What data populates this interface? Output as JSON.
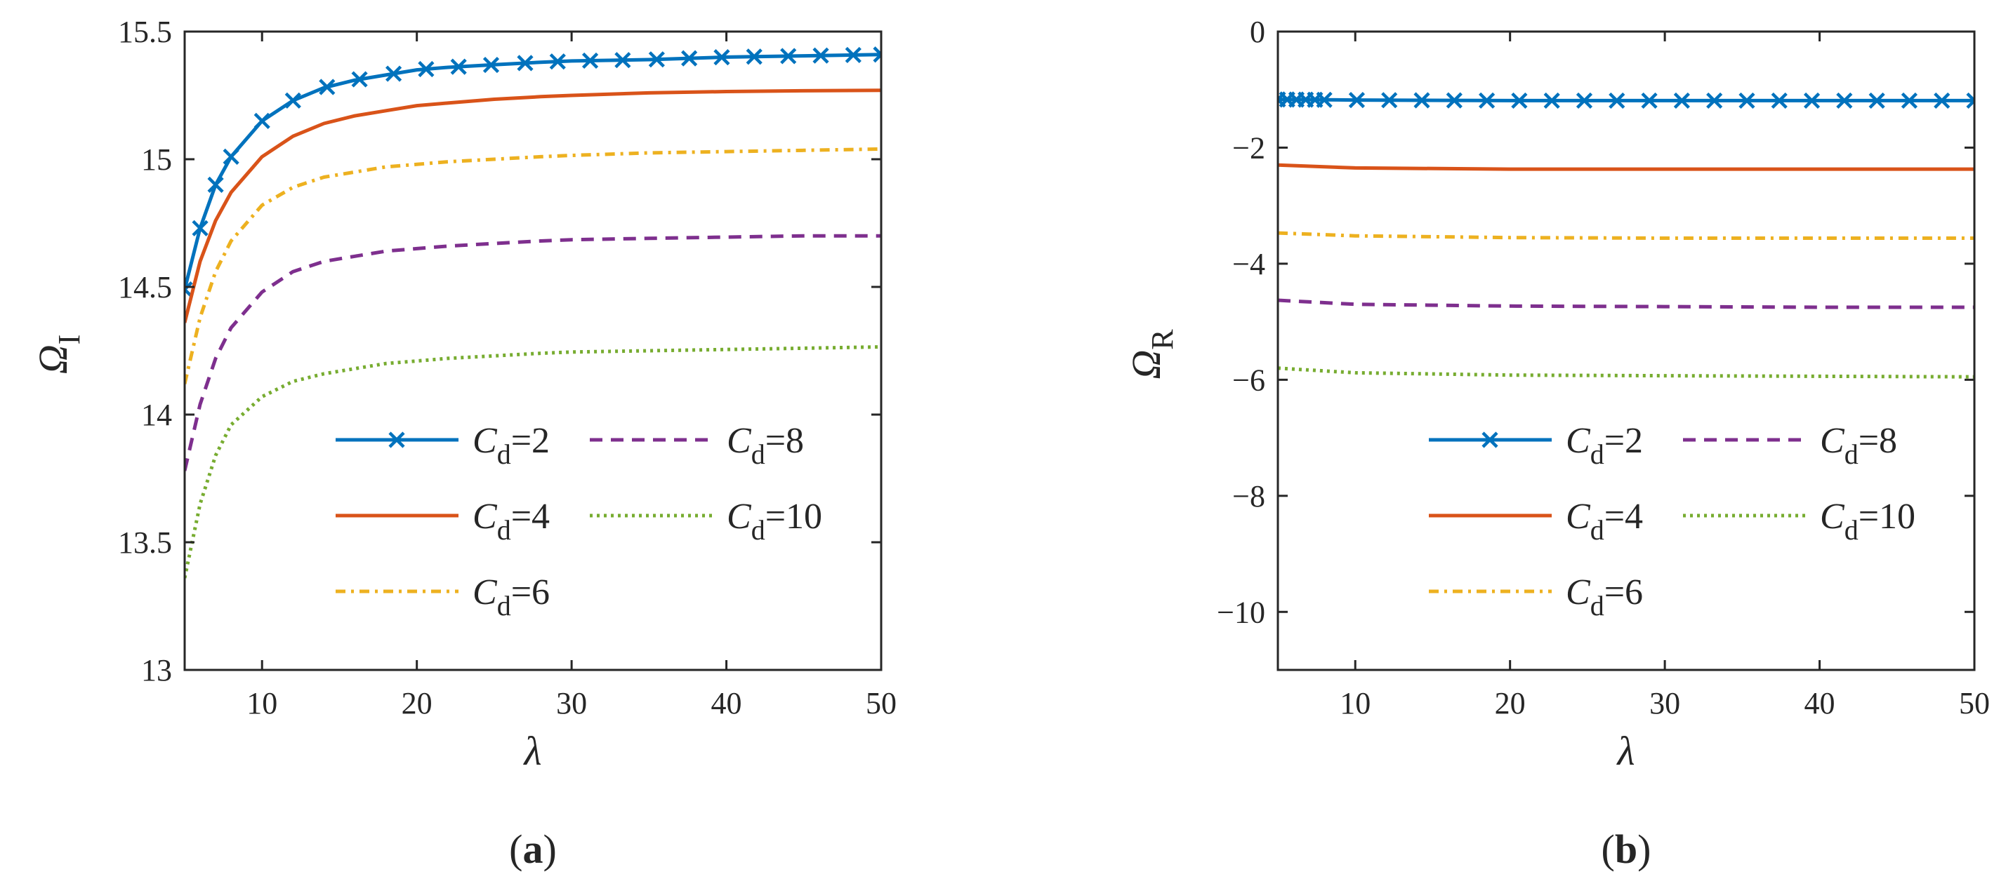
{
  "chart_data": [
    {
      "type": "line",
      "panel_label": "(a)",
      "xlabel": "λ",
      "ylabel": "Ω",
      "ylabel_sub": "I",
      "xlim": [
        5,
        50
      ],
      "ylim": [
        13,
        15.5
      ],
      "xticks": [
        10,
        20,
        30,
        40,
        50
      ],
      "yticks": [
        13,
        13.5,
        14,
        14.5,
        15,
        15.5
      ],
      "xtick_labels": [
        "10",
        "20",
        "30",
        "40",
        "50"
      ],
      "ytick_labels": [
        "13",
        "13.5",
        "14",
        "14.5",
        "15",
        "15.5"
      ],
      "x": [
        5,
        6,
        7,
        8,
        10,
        12,
        14,
        16,
        18,
        20,
        22,
        25,
        28,
        30,
        35,
        40,
        45,
        50
      ],
      "series": [
        {
          "name": "Cd=2",
          "sym": "C",
          "sub": "d",
          "eq": "=2",
          "color": "#0072BD",
          "dash": "",
          "marker": "x",
          "values": [
            14.49,
            14.73,
            14.9,
            15.01,
            15.15,
            15.23,
            15.28,
            15.31,
            15.33,
            15.35,
            15.36,
            15.37,
            15.38,
            15.385,
            15.39,
            15.4,
            15.405,
            15.41
          ]
        },
        {
          "name": "Cd=4",
          "sym": "C",
          "sub": "d",
          "eq": "=4",
          "color": "#D95319",
          "dash": "",
          "marker": "",
          "values": [
            14.36,
            14.6,
            14.76,
            14.87,
            15.01,
            15.09,
            15.14,
            15.17,
            15.19,
            15.21,
            15.22,
            15.235,
            15.245,
            15.25,
            15.26,
            15.265,
            15.268,
            15.27
          ]
        },
        {
          "name": "Cd=6",
          "sym": "C",
          "sub": "d",
          "eq": "=6",
          "color": "#EDB120",
          "dash": "14,8,4,8",
          "marker": "",
          "values": [
            14.12,
            14.38,
            14.56,
            14.68,
            14.82,
            14.89,
            14.93,
            14.95,
            14.97,
            14.98,
            14.99,
            15.0,
            15.01,
            15.015,
            15.025,
            15.03,
            15.035,
            15.04
          ]
        },
        {
          "name": "Cd=8",
          "sym": "C",
          "sub": "d",
          "eq": "=8",
          "color": "#7E2F8E",
          "dash": "18,12",
          "marker": "",
          "values": [
            13.78,
            14.04,
            14.22,
            14.34,
            14.48,
            14.56,
            14.6,
            14.62,
            14.64,
            14.65,
            14.66,
            14.67,
            14.68,
            14.685,
            14.69,
            14.695,
            14.7,
            14.7
          ]
        },
        {
          "name": "Cd=10",
          "sym": "C",
          "sub": "d",
          "eq": "=10",
          "color": "#77AC30",
          "dash": "4,6",
          "marker": "",
          "values": [
            13.36,
            13.65,
            13.84,
            13.96,
            14.07,
            14.13,
            14.16,
            14.18,
            14.2,
            14.21,
            14.22,
            14.23,
            14.24,
            14.245,
            14.25,
            14.255,
            14.26,
            14.265
          ]
        }
      ],
      "markers_x": [
        5,
        6,
        7,
        8,
        10,
        12,
        14.2,
        16.3,
        18.5,
        20.6,
        22.7,
        24.8,
        27,
        29.1,
        31.2,
        33.3,
        35.5,
        37.6,
        39.7,
        41.8,
        44,
        46.1,
        48.2,
        50
      ]
    },
    {
      "type": "line",
      "panel_label": "(b)",
      "xlabel": "λ",
      "ylabel": "Ω",
      "ylabel_sub": "R",
      "xlim": [
        5,
        50
      ],
      "ylim": [
        -11,
        0
      ],
      "xticks": [
        10,
        20,
        30,
        40,
        50
      ],
      "yticks": [
        -10,
        -8,
        -6,
        -4,
        -2,
        0
      ],
      "xtick_labels": [
        "10",
        "20",
        "30",
        "40",
        "50"
      ],
      "ytick_labels": [
        "−10",
        "−8",
        "−6",
        "−4",
        "−2",
        "0"
      ],
      "x": [
        5,
        10,
        20,
        30,
        40,
        50
      ],
      "series": [
        {
          "name": "Cd=2",
          "sym": "C",
          "sub": "d",
          "eq": "=2",
          "color": "#0072BD",
          "dash": "",
          "marker": "x",
          "values": [
            -1.17,
            -1.18,
            -1.19,
            -1.19,
            -1.19,
            -1.19
          ]
        },
        {
          "name": "Cd=4",
          "sym": "C",
          "sub": "d",
          "eq": "=4",
          "color": "#D95319",
          "dash": "",
          "marker": "",
          "values": [
            -2.3,
            -2.35,
            -2.37,
            -2.37,
            -2.37,
            -2.37
          ]
        },
        {
          "name": "Cd=6",
          "sym": "C",
          "sub": "d",
          "eq": "=6",
          "color": "#EDB120",
          "dash": "14,8,4,8",
          "marker": "",
          "values": [
            -3.47,
            -3.52,
            -3.55,
            -3.56,
            -3.56,
            -3.56
          ]
        },
        {
          "name": "Cd=8",
          "sym": "C",
          "sub": "d",
          "eq": "=8",
          "color": "#7E2F8E",
          "dash": "18,12",
          "marker": "",
          "values": [
            -4.63,
            -4.7,
            -4.73,
            -4.74,
            -4.75,
            -4.75
          ]
        },
        {
          "name": "Cd=10",
          "sym": "C",
          "sub": "d",
          "eq": "=10",
          "color": "#77AC30",
          "dash": "4,6",
          "marker": "",
          "values": [
            -5.8,
            -5.88,
            -5.92,
            -5.93,
            -5.94,
            -5.95
          ]
        }
      ],
      "markers_x": [
        5,
        5.6,
        6.2,
        6.8,
        7.4,
        8,
        10.1,
        12.2,
        14.3,
        16.4,
        18.5,
        20.6,
        22.7,
        24.8,
        26.9,
        29,
        31.1,
        33.2,
        35.3,
        37.4,
        39.5,
        41.6,
        43.7,
        45.8,
        47.9,
        50
      ]
    }
  ]
}
